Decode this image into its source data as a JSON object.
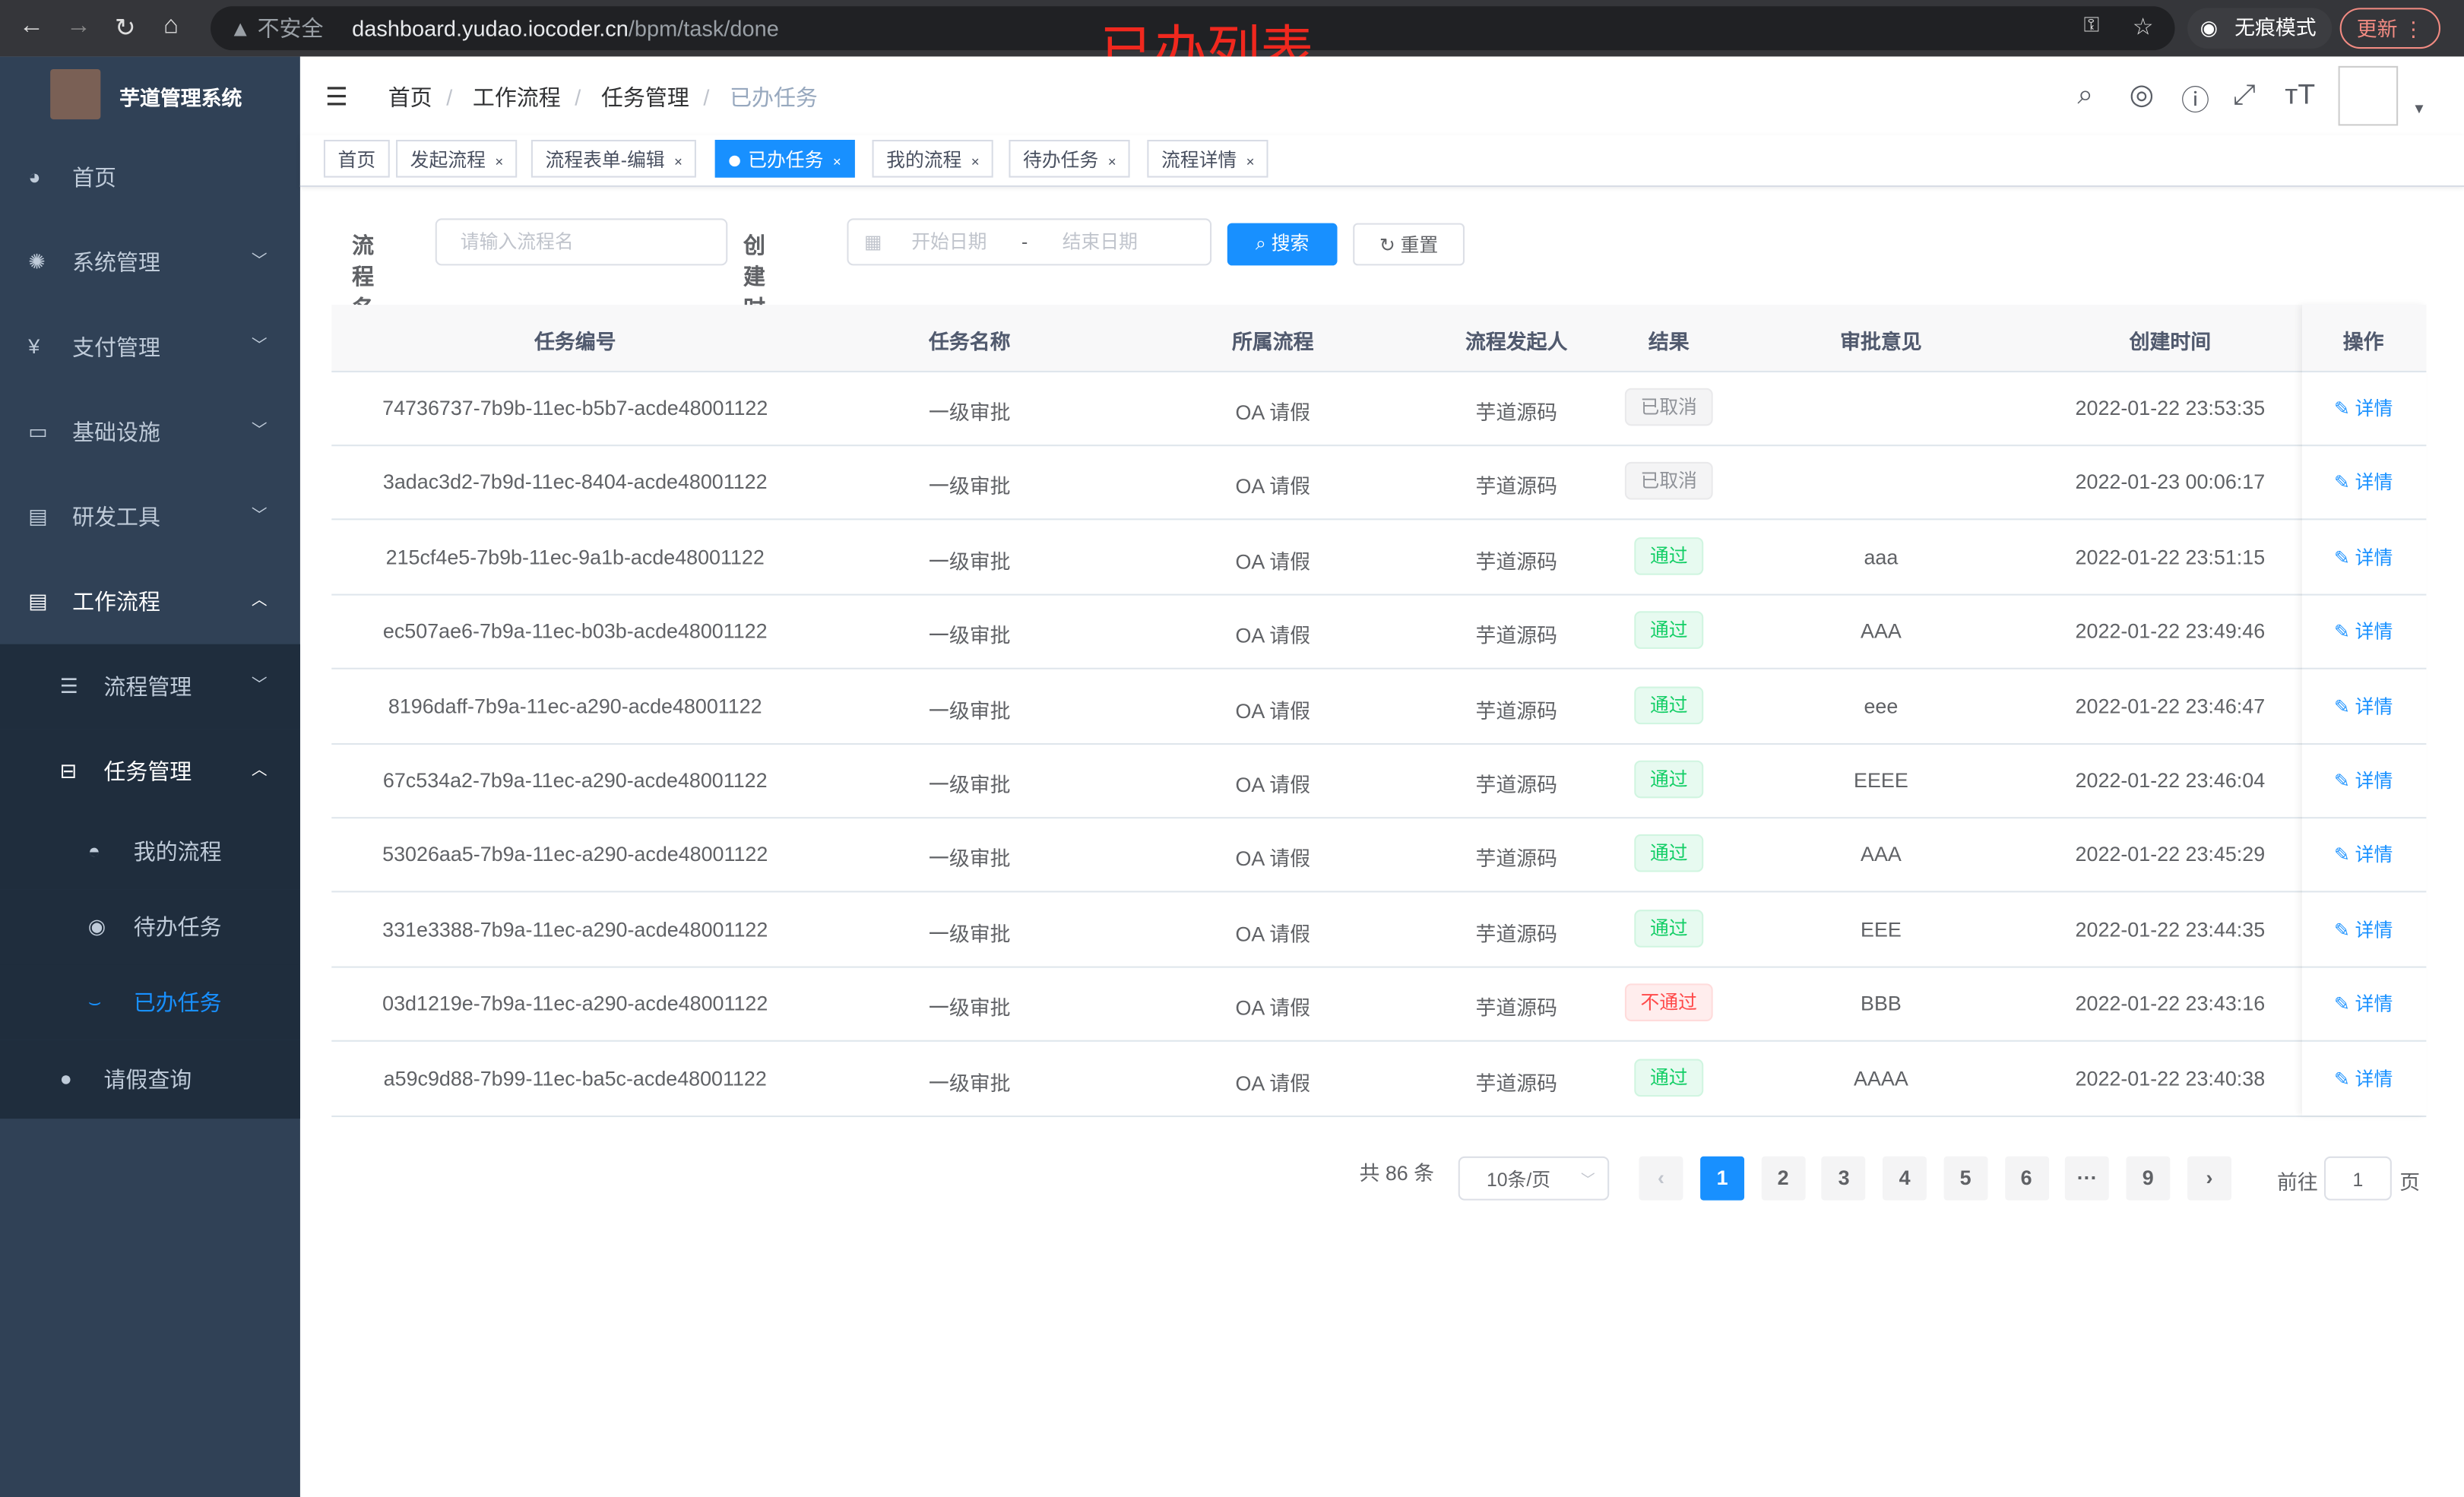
{
  "browser": {
    "security": "不安全",
    "url_host": "dashboard.yudao.iocoder.cn",
    "url_path": "/bpm/task/done",
    "incognito": "无痕模式",
    "update": "更新"
  },
  "annotation": "已办列表",
  "app": {
    "title": "芋道管理系统"
  },
  "sidebar": {
    "items": [
      {
        "label": "首页",
        "icon": "dashboard-icon"
      },
      {
        "label": "系统管理",
        "icon": "gear-icon"
      },
      {
        "label": "支付管理",
        "icon": "yen-icon"
      },
      {
        "label": "基础设施",
        "icon": "monitor-icon"
      },
      {
        "label": "研发工具",
        "icon": "toolbox-icon"
      },
      {
        "label": "工作流程",
        "icon": "toolbox-icon"
      },
      {
        "label": "流程管理",
        "icon": "list-icon"
      },
      {
        "label": "任务管理",
        "icon": "tree-icon"
      },
      {
        "label": "我的流程",
        "icon": "user-icon"
      },
      {
        "label": "待办任务",
        "icon": "eye-icon"
      },
      {
        "label": "已办任务",
        "icon": "done-icon"
      },
      {
        "label": "请假查询",
        "icon": "person-icon"
      }
    ]
  },
  "breadcrumb": [
    "首页",
    "工作流程",
    "任务管理",
    "已办任务"
  ],
  "tags": [
    "首页",
    "发起流程",
    "流程表单-编辑",
    "已办任务",
    "我的流程",
    "待办任务",
    "流程详情"
  ],
  "form": {
    "name_label": "流程名",
    "name_placeholder": "请输入流程名",
    "time_label": "创建时间",
    "start_placeholder": "开始日期",
    "sep": "-",
    "end_placeholder": "结束日期",
    "search": "搜索",
    "reset": "重置"
  },
  "table": {
    "headers": [
      "任务编号",
      "任务名称",
      "所属流程",
      "流程发起人",
      "结果",
      "审批意见",
      "创建时间",
      "操作"
    ],
    "detail_label": "详情",
    "rows": [
      {
        "id": "74736737-7b9b-11ec-b5b7-acde48001122",
        "name": "一级审批",
        "process": "OA 请假",
        "starter": "芋道源码",
        "result": "已取消",
        "status": "cancel",
        "comment": "",
        "time": "2022-01-22 23:53:35"
      },
      {
        "id": "3adac3d2-7b9d-11ec-8404-acde48001122",
        "name": "一级审批",
        "process": "OA 请假",
        "starter": "芋道源码",
        "result": "已取消",
        "status": "cancel",
        "comment": "",
        "time": "2022-01-23 00:06:17"
      },
      {
        "id": "215cf4e5-7b9b-11ec-9a1b-acde48001122",
        "name": "一级审批",
        "process": "OA 请假",
        "starter": "芋道源码",
        "result": "通过",
        "status": "pass",
        "comment": "aaa",
        "time": "2022-01-22 23:51:15"
      },
      {
        "id": "ec507ae6-7b9a-11ec-b03b-acde48001122",
        "name": "一级审批",
        "process": "OA 请假",
        "starter": "芋道源码",
        "result": "通过",
        "status": "pass",
        "comment": "AAA",
        "time": "2022-01-22 23:49:46"
      },
      {
        "id": "8196daff-7b9a-11ec-a290-acde48001122",
        "name": "一级审批",
        "process": "OA 请假",
        "starter": "芋道源码",
        "result": "通过",
        "status": "pass",
        "comment": "eee",
        "time": "2022-01-22 23:46:47"
      },
      {
        "id": "67c534a2-7b9a-11ec-a290-acde48001122",
        "name": "一级审批",
        "process": "OA 请假",
        "starter": "芋道源码",
        "result": "通过",
        "status": "pass",
        "comment": "EEEE",
        "time": "2022-01-22 23:46:04"
      },
      {
        "id": "53026aa5-7b9a-11ec-a290-acde48001122",
        "name": "一级审批",
        "process": "OA 请假",
        "starter": "芋道源码",
        "result": "通过",
        "status": "pass",
        "comment": "AAA",
        "time": "2022-01-22 23:45:29"
      },
      {
        "id": "331e3388-7b9a-11ec-a290-acde48001122",
        "name": "一级审批",
        "process": "OA 请假",
        "starter": "芋道源码",
        "result": "通过",
        "status": "pass",
        "comment": "EEE",
        "time": "2022-01-22 23:44:35"
      },
      {
        "id": "03d1219e-7b9a-11ec-a290-acde48001122",
        "name": "一级审批",
        "process": "OA 请假",
        "starter": "芋道源码",
        "result": "不通过",
        "status": "fail",
        "comment": "BBB",
        "time": "2022-01-22 23:43:16"
      },
      {
        "id": "a59c9d88-7b99-11ec-ba5c-acde48001122",
        "name": "一级审批",
        "process": "OA 请假",
        "starter": "芋道源码",
        "result": "通过",
        "status": "pass",
        "comment": "AAAA",
        "time": "2022-01-22 23:40:38"
      }
    ]
  },
  "pagination": {
    "total": "共 86 条",
    "page_size": "10条/页",
    "pages": [
      "1",
      "2",
      "3",
      "4",
      "5",
      "6",
      "···",
      "9"
    ],
    "current": "1",
    "goto_label": "前往",
    "goto_value": "1",
    "page_suffix": "页"
  }
}
